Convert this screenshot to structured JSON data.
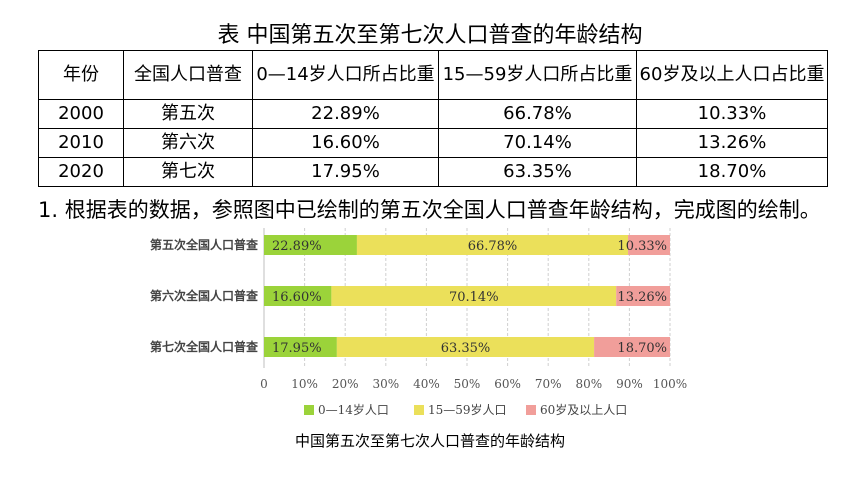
{
  "table_title": "表 中国第五次至第七次人口普查的年龄结构",
  "table": {
    "headers": [
      "年份",
      "全国人口普查",
      "0—14岁人口所占比重",
      "15—59岁人口所占比重",
      "60岁及以上人口占比重"
    ],
    "rows": [
      [
        "2000",
        "第五次",
        "22.89%",
        "66.78%",
        "10.33%"
      ],
      [
        "2010",
        "第六次",
        "16.60%",
        "70.14%",
        "13.26%"
      ],
      [
        "2020",
        "第七次",
        "17.95%",
        "63.35%",
        "18.70%"
      ]
    ]
  },
  "question": "1. 根据表的数据，参照图中已绘制的第五次全国人口普查年龄结构，完成图的绘制。",
  "chart_caption": "中国第五次至第七次人口普查的年龄结构",
  "chart_data": {
    "type": "bar",
    "orientation": "horizontal",
    "stacked": true,
    "categories": [
      "第五次全国人口普查",
      "第六次全国人口普查",
      "第七次全国人口普查"
    ],
    "series": [
      {
        "name": "0—14岁人口",
        "values": [
          22.89,
          16.6,
          17.95
        ],
        "labels": [
          "22.89%",
          "16.60%",
          "17.95%"
        ],
        "color": "#9bd33a"
      },
      {
        "name": "15—59岁人口",
        "values": [
          66.78,
          70.14,
          63.35
        ],
        "labels": [
          "66.78%",
          "70.14%",
          "63.35%"
        ],
        "color": "#ebe05a"
      },
      {
        "name": "60岁及以上人口",
        "values": [
          10.33,
          13.26,
          18.7
        ],
        "labels": [
          "10.33%",
          "13.26%",
          "18.70%"
        ],
        "color": "#f19e9a"
      }
    ],
    "xlim": [
      0,
      100
    ],
    "xticks": [
      "0",
      "10%",
      "20%",
      "30%",
      "40%",
      "50%",
      "60%",
      "70%",
      "80%",
      "90%",
      "100%"
    ],
    "grid": true,
    "legend": "bottom"
  }
}
